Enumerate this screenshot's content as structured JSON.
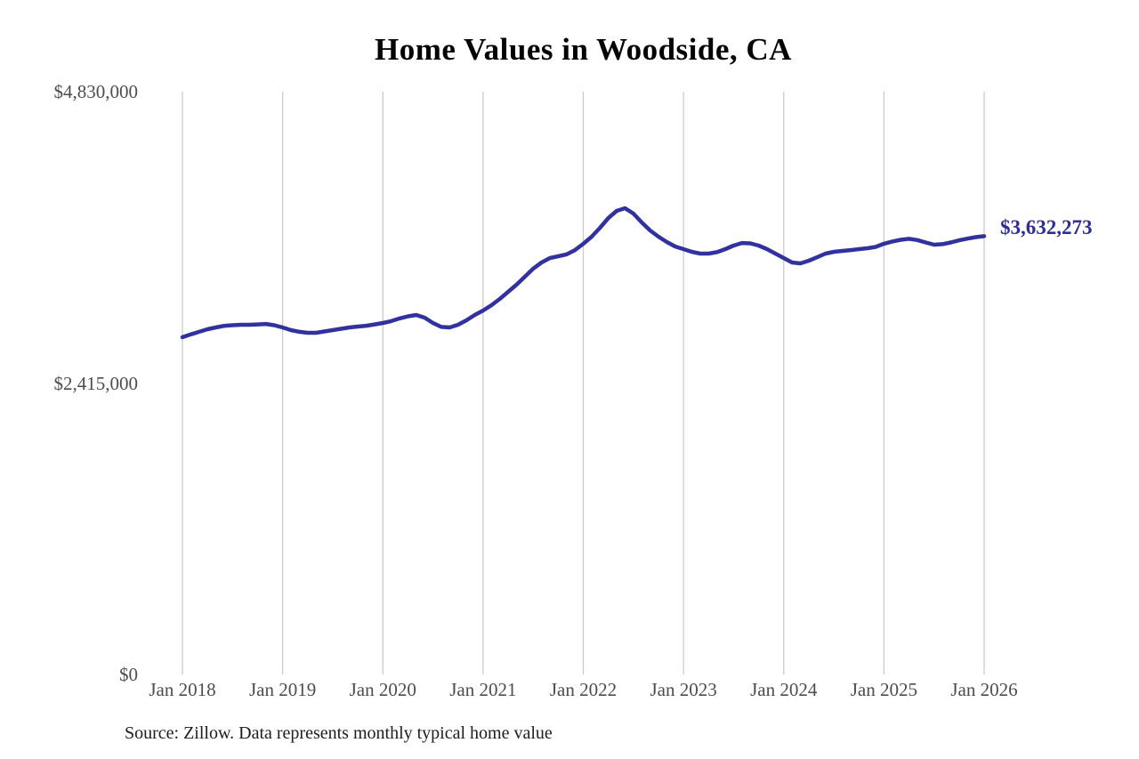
{
  "chart_data": {
    "type": "line",
    "title": "Home Values in Woodside, CA",
    "source_note": "Source: Zillow. Data represents monthly typical home value",
    "end_label": "$3,632,273",
    "xlabel": "",
    "ylabel": "",
    "ylim": [
      0,
      4830000
    ],
    "grid": "vertical-only",
    "legend_position": "none",
    "colors": {
      "line": "#32329e",
      "end_label": "#2d2d96",
      "grid": "#cbcbcb",
      "axis_text": "#4d4d4d",
      "title_text": "#050505"
    },
    "y_ticks": [
      {
        "label": "$0",
        "value": 0
      },
      {
        "label": "$2,415,000",
        "value": 2415000
      },
      {
        "label": "$4,830,000",
        "value": 4830000
      }
    ],
    "x_tick_labels": [
      "Jan 2018",
      "Jan 2019",
      "Jan 2020",
      "Jan 2021",
      "Jan 2022",
      "Jan 2023",
      "Jan 2024",
      "Jan 2025",
      "Jan 2026"
    ],
    "series": [
      {
        "name": "Monthly typical home value",
        "x": [
          "2018-01",
          "2018-02",
          "2018-03",
          "2018-04",
          "2018-05",
          "2018-06",
          "2018-07",
          "2018-08",
          "2018-09",
          "2018-10",
          "2018-11",
          "2018-12",
          "2019-01",
          "2019-02",
          "2019-03",
          "2019-04",
          "2019-05",
          "2019-06",
          "2019-07",
          "2019-08",
          "2019-09",
          "2019-10",
          "2019-11",
          "2019-12",
          "2020-01",
          "2020-02",
          "2020-03",
          "2020-04",
          "2020-05",
          "2020-06",
          "2020-07",
          "2020-08",
          "2020-09",
          "2020-10",
          "2020-11",
          "2020-12",
          "2021-01",
          "2021-02",
          "2021-03",
          "2021-04",
          "2021-05",
          "2021-06",
          "2021-07",
          "2021-08",
          "2021-09",
          "2021-10",
          "2021-11",
          "2021-12",
          "2022-01",
          "2022-02",
          "2022-03",
          "2022-04",
          "2022-05",
          "2022-06",
          "2022-07",
          "2022-08",
          "2022-09",
          "2022-10",
          "2022-11",
          "2022-12",
          "2023-01",
          "2023-02",
          "2023-03",
          "2023-04",
          "2023-05",
          "2023-06",
          "2023-07",
          "2023-08",
          "2023-09",
          "2023-10",
          "2023-11",
          "2023-12",
          "2024-01",
          "2024-02",
          "2024-03",
          "2024-04",
          "2024-05",
          "2024-06",
          "2024-07",
          "2024-08",
          "2024-09",
          "2024-10",
          "2024-11",
          "2024-12",
          "2025-01",
          "2025-02",
          "2025-03",
          "2025-04",
          "2025-05",
          "2025-06",
          "2025-07",
          "2025-08",
          "2025-09",
          "2025-10",
          "2025-11",
          "2025-12",
          "2026-01"
        ],
        "values": [
          2795000,
          2818000,
          2840000,
          2861000,
          2876000,
          2889000,
          2894000,
          2898000,
          2898000,
          2901000,
          2905000,
          2894000,
          2876000,
          2854000,
          2840000,
          2832000,
          2832000,
          2843000,
          2854000,
          2865000,
          2876000,
          2883000,
          2890000,
          2901000,
          2913000,
          2928000,
          2950000,
          2968000,
          2979000,
          2957000,
          2913000,
          2880000,
          2876000,
          2898000,
          2935000,
          2979000,
          3016000,
          3060000,
          3112000,
          3171000,
          3230000,
          3296000,
          3363000,
          3414000,
          3451000,
          3466000,
          3481000,
          3517000,
          3569000,
          3628000,
          3702000,
          3783000,
          3842000,
          3864000,
          3820000,
          3746000,
          3680000,
          3628000,
          3584000,
          3547000,
          3525000,
          3503000,
          3488000,
          3488000,
          3500000,
          3525000,
          3554000,
          3576000,
          3573000,
          3554000,
          3525000,
          3488000,
          3451000,
          3414000,
          3407000,
          3429000,
          3458000,
          3488000,
          3503000,
          3510000,
          3517000,
          3525000,
          3532000,
          3543000,
          3570000,
          3588000,
          3602000,
          3610000,
          3600000,
          3580000,
          3562000,
          3566000,
          3580000,
          3598000,
          3612000,
          3624000,
          3632273
        ]
      }
    ],
    "final_value": 3632273
  }
}
